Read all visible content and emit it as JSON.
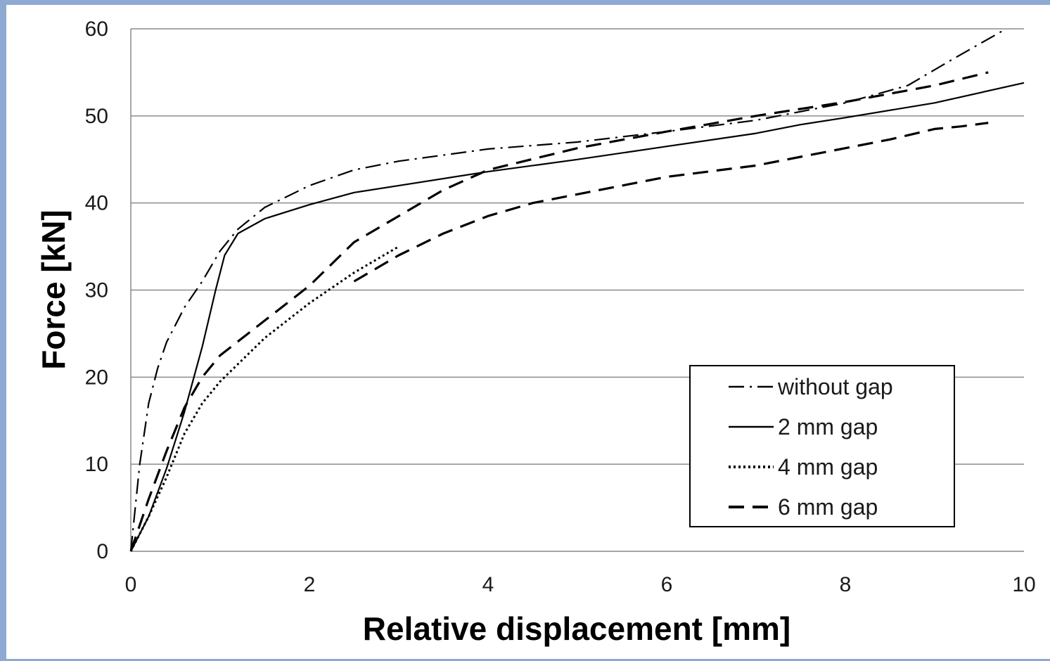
{
  "chart_data": {
    "type": "line",
    "title": "",
    "xlabel": "Relative displacement [mm]",
    "ylabel": "Force [kN]",
    "xlim": [
      0,
      10
    ],
    "ylim": [
      0,
      60
    ],
    "x_ticks": [
      0,
      2,
      4,
      6,
      8,
      10
    ],
    "y_ticks": [
      0,
      10,
      20,
      30,
      40,
      50,
      60
    ],
    "x_tick_labels": [
      "0",
      "2",
      "4",
      "6",
      "8",
      "10"
    ],
    "y_tick_labels": [
      "0",
      "10",
      "20",
      "30",
      "40",
      "50",
      "60"
    ],
    "grid": "horizontal",
    "legend_position": "bottom-right",
    "series": [
      {
        "name": "without gap",
        "line_style": "dash-dot",
        "color": "#000000",
        "points": [
          [
            0,
            0
          ],
          [
            0.05,
            5
          ],
          [
            0.1,
            10
          ],
          [
            0.2,
            17
          ],
          [
            0.3,
            21
          ],
          [
            0.4,
            24
          ],
          [
            0.6,
            28
          ],
          [
            0.8,
            31
          ],
          [
            1.0,
            34.5
          ],
          [
            1.2,
            37
          ],
          [
            1.5,
            39.5
          ],
          [
            2.0,
            42
          ],
          [
            2.5,
            43.8
          ],
          [
            3.0,
            44.8
          ],
          [
            4.0,
            46.2
          ],
          [
            5.0,
            47
          ],
          [
            6.0,
            48.2
          ],
          [
            7.0,
            49.5
          ],
          [
            8.0,
            51.5
          ],
          [
            8.7,
            53.5
          ],
          [
            9.2,
            56.5
          ],
          [
            9.8,
            60
          ]
        ]
      },
      {
        "name": "2 mm gap",
        "line_style": "solid",
        "color": "#000000",
        "points": [
          [
            0,
            0
          ],
          [
            0.2,
            4
          ],
          [
            0.4,
            9.5
          ],
          [
            0.6,
            16
          ],
          [
            0.8,
            23.5
          ],
          [
            0.95,
            30
          ],
          [
            1.05,
            34
          ],
          [
            1.2,
            36.5
          ],
          [
            1.5,
            38.2
          ],
          [
            2.0,
            39.8
          ],
          [
            2.5,
            41.2
          ],
          [
            3.0,
            42
          ],
          [
            4.0,
            43.6
          ],
          [
            5.0,
            45
          ],
          [
            6.0,
            46.5
          ],
          [
            7.0,
            48
          ],
          [
            7.5,
            49
          ],
          [
            8.0,
            49.8
          ],
          [
            9.0,
            51.5
          ],
          [
            10.0,
            53.8
          ]
        ]
      },
      {
        "name": "4 mm gap",
        "line_style": "dotted",
        "color": "#000000",
        "points": [
          [
            0,
            0
          ],
          [
            0.2,
            4
          ],
          [
            0.4,
            8.5
          ],
          [
            0.6,
            13.5
          ],
          [
            0.8,
            17
          ],
          [
            1.0,
            19.5
          ],
          [
            1.5,
            24.5
          ],
          [
            2.0,
            28.5
          ],
          [
            2.5,
            32
          ],
          [
            3.0,
            35
          ]
        ]
      },
      {
        "name": "6 mm gap",
        "line_style": "dashed",
        "color": "#000000",
        "points": [
          [
            0,
            0
          ],
          [
            0.2,
            6
          ],
          [
            0.4,
            11.5
          ],
          [
            0.6,
            16.5
          ],
          [
            0.8,
            20
          ],
          [
            1.0,
            22.5
          ],
          [
            1.5,
            26.5
          ],
          [
            2.0,
            30.5
          ],
          [
            2.5,
            35.5
          ],
          [
            3.0,
            38.5
          ],
          [
            3.5,
            41.5
          ],
          [
            4.0,
            43.8
          ],
          [
            5.0,
            46.3
          ],
          [
            6.0,
            48.2
          ],
          [
            7.0,
            50
          ],
          [
            8.0,
            51.6
          ],
          [
            9.0,
            53.5
          ],
          [
            9.6,
            55
          ]
        ]
      },
      {
        "name": "",
        "line_style": "dashed",
        "color": "#000000",
        "points": [
          [
            2.5,
            31
          ],
          [
            3.0,
            34
          ],
          [
            3.5,
            36.5
          ],
          [
            4.0,
            38.5
          ],
          [
            4.5,
            40
          ],
          [
            5.0,
            41
          ],
          [
            6.0,
            43
          ],
          [
            7.0,
            44.3
          ],
          [
            7.5,
            45.3
          ],
          [
            8.0,
            46.3
          ],
          [
            8.5,
            47.3
          ],
          [
            9.0,
            48.5
          ],
          [
            9.3,
            48.8
          ],
          [
            9.6,
            49.2
          ]
        ]
      }
    ]
  }
}
